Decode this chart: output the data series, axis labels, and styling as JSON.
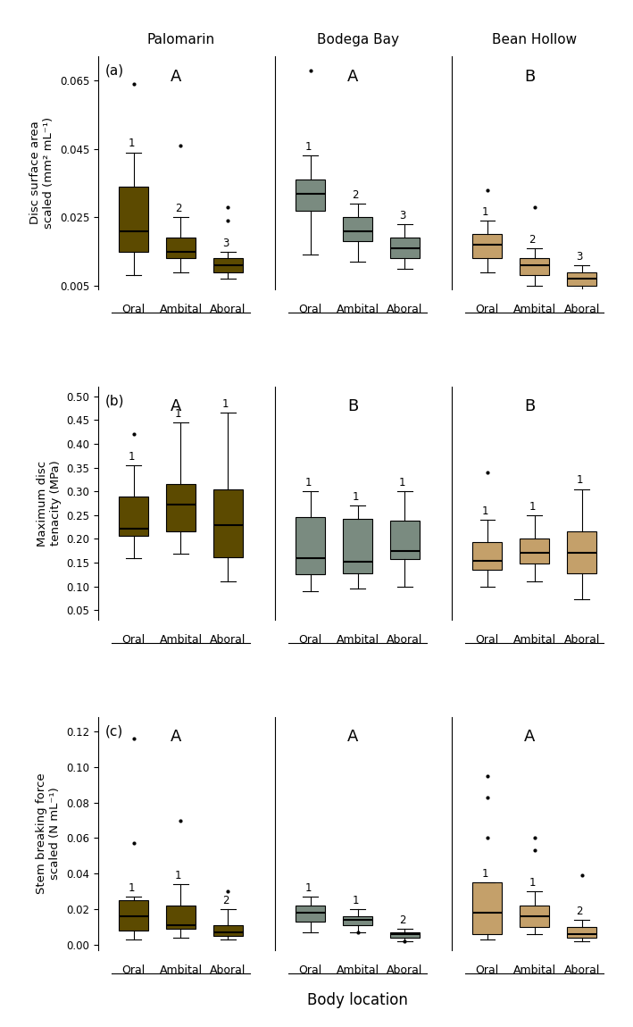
{
  "title_col": [
    "Palomarin",
    "Bodega Bay",
    "Bean Hollow"
  ],
  "panel_labels": [
    "(a)",
    "(b)",
    "(c)"
  ],
  "colors": {
    "palomarin": "#5C4A00",
    "bodega": "#7A8B80",
    "bean": "#C4A06A"
  },
  "panel_a": {
    "ylabel": "Disc surface area\nscaled (mm² mL⁻¹)",
    "ylim": [
      0.004,
      0.072
    ],
    "yticks": [
      0.005,
      0.025,
      0.045,
      0.065
    ],
    "yticklabels": [
      "0.005",
      "0.025",
      "0.045",
      "0.065"
    ],
    "sig_letters": [
      "A",
      "A",
      "B"
    ],
    "num_labels": [
      [
        "1",
        "2",
        "3"
      ],
      [
        "1",
        "2",
        "3"
      ],
      [
        "1",
        "2",
        "3"
      ]
    ],
    "palomarin": {
      "oral": {
        "q1": 0.015,
        "median": 0.021,
        "q3": 0.034,
        "whislo": 0.008,
        "whishi": 0.044,
        "fliers": [
          0.064
        ]
      },
      "ambital": {
        "q1": 0.013,
        "median": 0.015,
        "q3": 0.019,
        "whislo": 0.009,
        "whishi": 0.025,
        "fliers": [
          0.046
        ]
      },
      "aboral": {
        "q1": 0.009,
        "median": 0.011,
        "q3": 0.013,
        "whislo": 0.007,
        "whishi": 0.015,
        "fliers": [
          0.024,
          0.028
        ]
      }
    },
    "bodega": {
      "oral": {
        "q1": 0.027,
        "median": 0.032,
        "q3": 0.036,
        "whislo": 0.014,
        "whishi": 0.043,
        "fliers": [
          0.068
        ]
      },
      "ambital": {
        "q1": 0.018,
        "median": 0.021,
        "q3": 0.025,
        "whislo": 0.012,
        "whishi": 0.029,
        "fliers": []
      },
      "aboral": {
        "q1": 0.013,
        "median": 0.016,
        "q3": 0.019,
        "whislo": 0.01,
        "whishi": 0.023,
        "fliers": []
      }
    },
    "bean": {
      "oral": {
        "q1": 0.013,
        "median": 0.017,
        "q3": 0.02,
        "whislo": 0.009,
        "whishi": 0.024,
        "fliers": [
          0.033
        ]
      },
      "ambital": {
        "q1": 0.008,
        "median": 0.011,
        "q3": 0.013,
        "whislo": 0.005,
        "whishi": 0.016,
        "fliers": [
          0.028
        ]
      },
      "aboral": {
        "q1": 0.005,
        "median": 0.007,
        "q3": 0.009,
        "whislo": 0.004,
        "whishi": 0.011,
        "fliers": []
      }
    }
  },
  "panel_b": {
    "ylabel": "Maximum disc\ntenacity (MPa)",
    "ylim": [
      0.03,
      0.52
    ],
    "yticks": [
      0.05,
      0.1,
      0.15,
      0.2,
      0.25,
      0.3,
      0.35,
      0.4,
      0.45,
      0.5
    ],
    "yticklabels": [
      "0.05",
      "0.10",
      "0.15",
      "0.20",
      "0.25",
      "0.30",
      "0.35",
      "0.40",
      "0.45",
      "0.50"
    ],
    "sig_letters": [
      "A",
      "B",
      "B"
    ],
    "num_labels": [
      [
        "1",
        "1",
        "1"
      ],
      [
        "1",
        "1",
        "1"
      ],
      [
        "1",
        "1",
        "1"
      ]
    ],
    "palomarin": {
      "oral": {
        "q1": 0.207,
        "median": 0.222,
        "q3": 0.29,
        "whislo": 0.16,
        "whishi": 0.355,
        "fliers": [
          0.42
        ]
      },
      "ambital": {
        "q1": 0.215,
        "median": 0.273,
        "q3": 0.315,
        "whislo": 0.168,
        "whishi": 0.445,
        "fliers": []
      },
      "aboral": {
        "q1": 0.162,
        "median": 0.228,
        "q3": 0.305,
        "whislo": 0.11,
        "whishi": 0.465,
        "fliers": []
      }
    },
    "bodega": {
      "oral": {
        "q1": 0.125,
        "median": 0.16,
        "q3": 0.245,
        "whislo": 0.09,
        "whishi": 0.3,
        "fliers": []
      },
      "ambital": {
        "q1": 0.128,
        "median": 0.152,
        "q3": 0.243,
        "whislo": 0.095,
        "whishi": 0.27,
        "fliers": []
      },
      "aboral": {
        "q1": 0.157,
        "median": 0.174,
        "q3": 0.238,
        "whislo": 0.1,
        "whishi": 0.3,
        "fliers": []
      }
    },
    "bean": {
      "oral": {
        "q1": 0.135,
        "median": 0.153,
        "q3": 0.193,
        "whislo": 0.1,
        "whishi": 0.24,
        "fliers": [
          0.34
        ]
      },
      "ambital": {
        "q1": 0.148,
        "median": 0.17,
        "q3": 0.2,
        "whislo": 0.11,
        "whishi": 0.25,
        "fliers": []
      },
      "aboral": {
        "q1": 0.128,
        "median": 0.17,
        "q3": 0.215,
        "whislo": 0.073,
        "whishi": 0.305,
        "fliers": []
      }
    }
  },
  "panel_c": {
    "ylabel": "Stem breaking force\nscaled (N mL⁻¹)",
    "ylim": [
      -0.003,
      0.128
    ],
    "yticks": [
      0.0,
      0.02,
      0.04,
      0.06,
      0.08,
      0.1,
      0.12
    ],
    "yticklabels": [
      "0.00",
      "0.02",
      "0.04",
      "0.06",
      "0.08",
      "0.10",
      "0.12"
    ],
    "sig_letters": [
      "A",
      "A",
      "A"
    ],
    "num_labels": [
      [
        "1",
        "1",
        "2"
      ],
      [
        "1",
        "1",
        "2"
      ],
      [
        "1",
        "1",
        "2"
      ]
    ],
    "palomarin": {
      "oral": {
        "q1": 0.008,
        "median": 0.016,
        "q3": 0.025,
        "whislo": 0.003,
        "whishi": 0.027,
        "fliers": [
          0.057,
          0.116
        ]
      },
      "ambital": {
        "q1": 0.009,
        "median": 0.011,
        "q3": 0.022,
        "whislo": 0.004,
        "whishi": 0.034,
        "fliers": [
          0.07
        ]
      },
      "aboral": {
        "q1": 0.005,
        "median": 0.007,
        "q3": 0.011,
        "whislo": 0.003,
        "whishi": 0.02,
        "fliers": [
          0.03
        ]
      }
    },
    "bodega": {
      "oral": {
        "q1": 0.013,
        "median": 0.018,
        "q3": 0.022,
        "whislo": 0.007,
        "whishi": 0.027,
        "fliers": []
      },
      "ambital": {
        "q1": 0.011,
        "median": 0.014,
        "q3": 0.016,
        "whislo": 0.007,
        "whishi": 0.02,
        "fliers": [
          0.007
        ]
      },
      "aboral": {
        "q1": 0.004,
        "median": 0.006,
        "q3": 0.007,
        "whislo": 0.002,
        "whishi": 0.009,
        "fliers": [
          0.002
        ]
      }
    },
    "bean": {
      "oral": {
        "q1": 0.006,
        "median": 0.018,
        "q3": 0.035,
        "whislo": 0.003,
        "whishi": 0.035,
        "fliers": [
          0.06,
          0.083,
          0.095
        ]
      },
      "ambital": {
        "q1": 0.01,
        "median": 0.016,
        "q3": 0.022,
        "whislo": 0.006,
        "whishi": 0.03,
        "fliers": [
          0.053,
          0.06
        ]
      },
      "aboral": {
        "q1": 0.004,
        "median": 0.006,
        "q3": 0.01,
        "whislo": 0.002,
        "whishi": 0.014,
        "fliers": [
          0.039
        ]
      }
    }
  },
  "xlabel": "Body location",
  "locations": [
    "Oral",
    "Ambital",
    "Aboral"
  ]
}
